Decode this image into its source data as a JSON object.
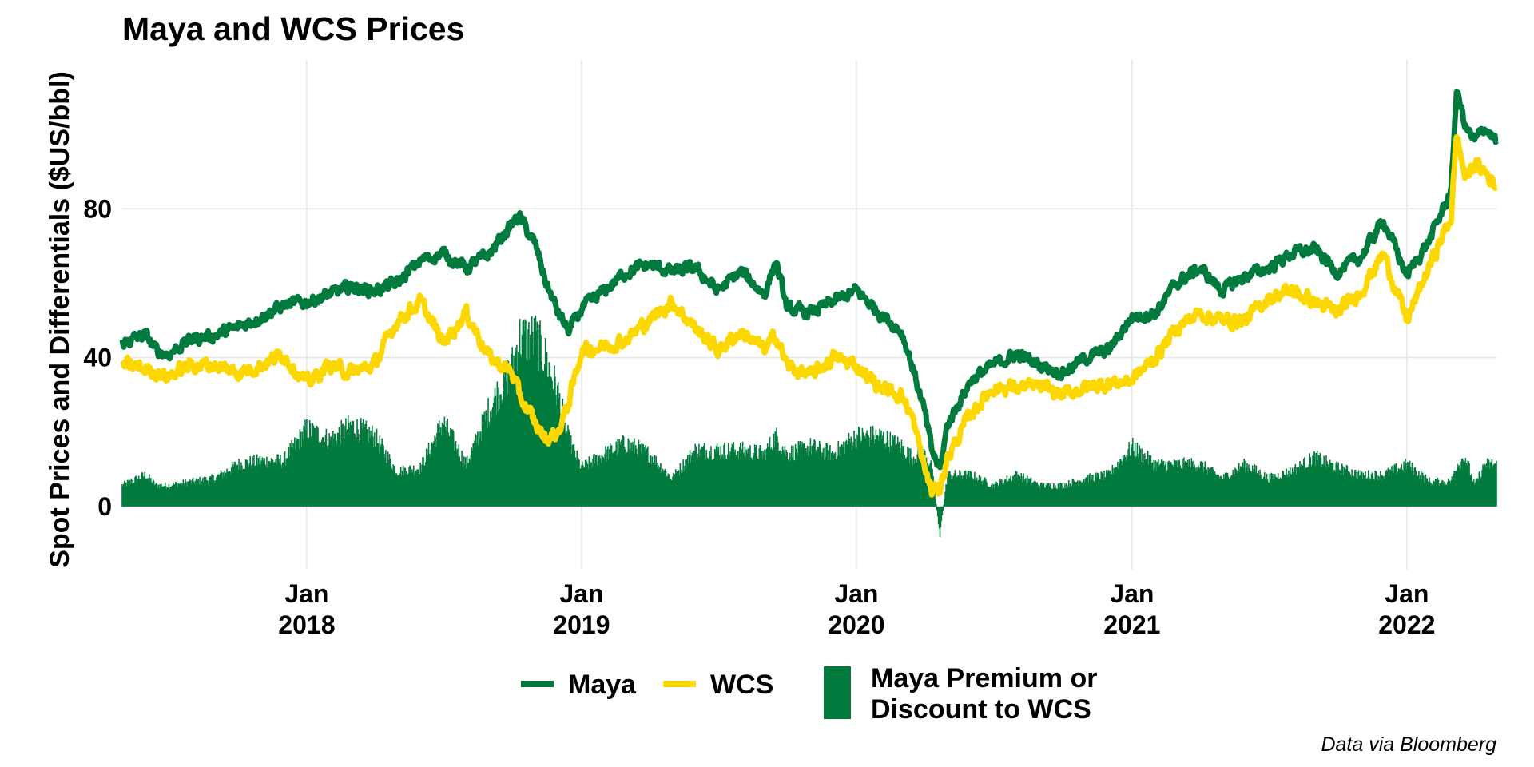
{
  "chart_data": {
    "type": "line",
    "title": "Maya and WCS Prices",
    "ylabel": "Spot Prices and Differentials ($US/bbl)",
    "xlabel": "",
    "caption": "Data via Bloomberg",
    "x_range": [
      "2017-05-01",
      "2022-04-30"
    ],
    "ylim": [
      -17,
      120
    ],
    "y_ticks": [
      0,
      40,
      80
    ],
    "x_ticks": [
      {
        "date": "2018-01-01",
        "month": "Jan",
        "year": "2018"
      },
      {
        "date": "2019-01-01",
        "month": "Jan",
        "year": "2019"
      },
      {
        "date": "2020-01-01",
        "month": "Jan",
        "year": "2020"
      },
      {
        "date": "2021-01-01",
        "month": "Jan",
        "year": "2021"
      },
      {
        "date": "2022-01-01",
        "month": "Jan",
        "year": "2022"
      }
    ],
    "grid": true,
    "legend_position": "bottom",
    "colors": {
      "maya": "#007A3D",
      "wcs": "#FDD800",
      "premium": "#007A3D"
    },
    "series": [
      {
        "name": "Maya",
        "kind": "line",
        "x": [
          "2017-05-01",
          "2017-06-01",
          "2017-06-15",
          "2017-07-01",
          "2017-08-01",
          "2017-09-01",
          "2017-10-01",
          "2017-11-01",
          "2017-12-01",
          "2018-01-01",
          "2018-02-01",
          "2018-03-01",
          "2018-04-01",
          "2018-05-01",
          "2018-06-01",
          "2018-07-01",
          "2018-08-01",
          "2018-09-01",
          "2018-10-01",
          "2018-10-10",
          "2018-11-01",
          "2018-11-15",
          "2018-12-01",
          "2018-12-15",
          "2019-01-01",
          "2019-02-01",
          "2019-03-01",
          "2019-04-01",
          "2019-05-01",
          "2019-06-01",
          "2019-07-01",
          "2019-08-01",
          "2019-09-01",
          "2019-09-16",
          "2019-10-01",
          "2019-11-01",
          "2019-12-01",
          "2020-01-01",
          "2020-02-01",
          "2020-03-01",
          "2020-03-15",
          "2020-04-01",
          "2020-04-10",
          "2020-04-21",
          "2020-05-01",
          "2020-06-01",
          "2020-07-01",
          "2020-08-01",
          "2020-09-01",
          "2020-10-01",
          "2020-11-01",
          "2020-12-01",
          "2021-01-01",
          "2021-02-01",
          "2021-03-01",
          "2021-04-01",
          "2021-05-01",
          "2021-06-01",
          "2021-07-01",
          "2021-08-01",
          "2021-09-01",
          "2021-10-01",
          "2021-11-01",
          "2021-12-01",
          "2022-01-01",
          "2022-02-01",
          "2022-03-01",
          "2022-03-08",
          "2022-03-20",
          "2022-04-01",
          "2022-04-15",
          "2022-04-30"
        ],
        "values": [
          44,
          46,
          42,
          41,
          45,
          46,
          48,
          51,
          54,
          55,
          57,
          59,
          58,
          60,
          66,
          68,
          64,
          68,
          76,
          78,
          70,
          60,
          52,
          47,
          53,
          58,
          63,
          65,
          63,
          64,
          58,
          63,
          57,
          66,
          53,
          52,
          55,
          58,
          52,
          47,
          38,
          25,
          15,
          10,
          22,
          34,
          38,
          41,
          38,
          36,
          40,
          42,
          51,
          52,
          60,
          64,
          58,
          62,
          64,
          68,
          69,
          63,
          67,
          77,
          62,
          72,
          85,
          112,
          102,
          98,
          102,
          98
        ]
      },
      {
        "name": "WCS",
        "kind": "line",
        "x": [
          "2017-05-01",
          "2017-06-01",
          "2017-06-15",
          "2017-07-01",
          "2017-08-01",
          "2017-09-01",
          "2017-10-01",
          "2017-11-01",
          "2017-12-01",
          "2018-01-01",
          "2018-02-01",
          "2018-03-01",
          "2018-04-01",
          "2018-05-01",
          "2018-06-01",
          "2018-07-01",
          "2018-08-01",
          "2018-09-01",
          "2018-10-01",
          "2018-10-10",
          "2018-11-01",
          "2018-11-15",
          "2018-12-01",
          "2018-12-15",
          "2019-01-01",
          "2019-02-01",
          "2019-03-01",
          "2019-04-01",
          "2019-05-01",
          "2019-06-01",
          "2019-07-01",
          "2019-08-01",
          "2019-09-01",
          "2019-09-16",
          "2019-10-01",
          "2019-11-01",
          "2019-12-01",
          "2020-01-01",
          "2020-02-01",
          "2020-03-01",
          "2020-03-15",
          "2020-04-01",
          "2020-04-10",
          "2020-04-21",
          "2020-05-01",
          "2020-06-01",
          "2020-07-01",
          "2020-08-01",
          "2020-09-01",
          "2020-10-01",
          "2020-11-01",
          "2020-12-01",
          "2021-01-01",
          "2021-02-01",
          "2021-03-01",
          "2021-04-01",
          "2021-05-01",
          "2021-06-01",
          "2021-07-01",
          "2021-08-01",
          "2021-09-01",
          "2021-10-01",
          "2021-11-01",
          "2021-12-01",
          "2022-01-01",
          "2022-02-01",
          "2022-03-01",
          "2022-03-08",
          "2022-03-20",
          "2022-04-01",
          "2022-04-15",
          "2022-04-30"
        ],
        "values": [
          38,
          37,
          36,
          35,
          38,
          38,
          36,
          38,
          41,
          33,
          38,
          36,
          38,
          50,
          55,
          44,
          52,
          40,
          36,
          30,
          22,
          18,
          20,
          28,
          42,
          43,
          45,
          50,
          55,
          48,
          42,
          47,
          42,
          46,
          38,
          35,
          40,
          38,
          32,
          30,
          24,
          10,
          4,
          5,
          13,
          25,
          32,
          32,
          32,
          30,
          32,
          33,
          34,
          40,
          48,
          52,
          50,
          50,
          56,
          58,
          55,
          52,
          58,
          68,
          50,
          65,
          78,
          100,
          88,
          92,
          90,
          86
        ]
      },
      {
        "name": "Maya Premium or Discount to WCS",
        "kind": "bar",
        "x": [
          "2017-05-01",
          "2017-06-01",
          "2017-06-15",
          "2017-07-01",
          "2017-08-01",
          "2017-09-01",
          "2017-10-01",
          "2017-11-01",
          "2017-12-01",
          "2018-01-01",
          "2018-02-01",
          "2018-03-01",
          "2018-04-01",
          "2018-05-01",
          "2018-06-01",
          "2018-07-01",
          "2018-08-01",
          "2018-09-01",
          "2018-10-01",
          "2018-10-10",
          "2018-11-01",
          "2018-11-15",
          "2018-12-01",
          "2018-12-15",
          "2019-01-01",
          "2019-02-01",
          "2019-03-01",
          "2019-04-01",
          "2019-05-01",
          "2019-06-01",
          "2019-07-01",
          "2019-08-01",
          "2019-09-01",
          "2019-09-16",
          "2019-10-01",
          "2019-11-01",
          "2019-12-01",
          "2020-01-01",
          "2020-02-01",
          "2020-03-01",
          "2020-03-15",
          "2020-04-01",
          "2020-04-10",
          "2020-04-21",
          "2020-05-01",
          "2020-06-01",
          "2020-07-01",
          "2020-08-01",
          "2020-09-01",
          "2020-10-01",
          "2020-11-01",
          "2020-12-01",
          "2021-01-01",
          "2021-02-01",
          "2021-03-01",
          "2021-04-01",
          "2021-05-01",
          "2021-06-01",
          "2021-07-01",
          "2021-08-01",
          "2021-09-01",
          "2021-10-01",
          "2021-11-01",
          "2021-12-01",
          "2022-01-01",
          "2022-02-01",
          "2022-03-01",
          "2022-03-08",
          "2022-03-20",
          "2022-04-01",
          "2022-04-15",
          "2022-04-30"
        ],
        "values": [
          6,
          9,
          6,
          6,
          7,
          8,
          12,
          13,
          13,
          22,
          19,
          23,
          20,
          10,
          11,
          24,
          12,
          28,
          40,
          48,
          48,
          42,
          32,
          19,
          11,
          15,
          18,
          15,
          8,
          16,
          16,
          16,
          15,
          20,
          15,
          17,
          15,
          20,
          20,
          17,
          14,
          15,
          11,
          -8,
          9,
          9,
          6,
          9,
          6,
          6,
          8,
          9,
          17,
          12,
          12,
          12,
          8,
          12,
          8,
          10,
          14,
          11,
          9,
          9,
          12,
          7,
          7,
          12,
          14,
          6,
          12,
          12
        ]
      }
    ],
    "legend": [
      {
        "label": "Maya",
        "kind": "line"
      },
      {
        "label": "WCS",
        "kind": "line"
      },
      {
        "label_line1": "Maya Premium or",
        "label_line2": "Discount to WCS",
        "kind": "bar"
      }
    ]
  }
}
